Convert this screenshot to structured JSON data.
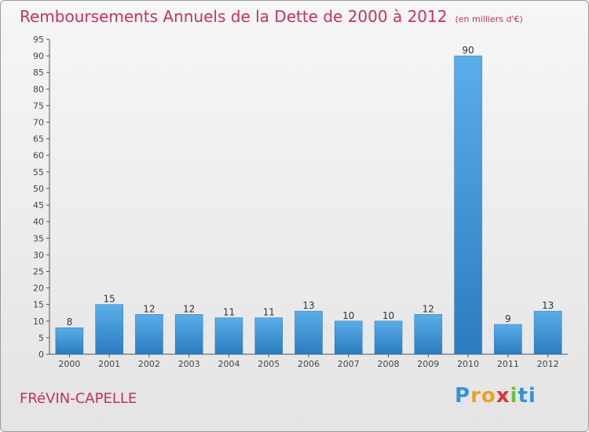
{
  "title": "Remboursements Annuels de la Dette de 2000 à 2012",
  "subtitle": "(en milliers d'€)",
  "place": "FRéVIN-CAPELLE",
  "logo": {
    "letters": [
      "P",
      "r",
      "o",
      "x",
      "i",
      "ti"
    ]
  },
  "colors": {
    "bar_top": "#5aaee8",
    "bar_bottom": "#2a7cc0",
    "title": "#c2335e"
  },
  "chart_data": {
    "type": "bar",
    "categories": [
      "2000",
      "2001",
      "2002",
      "2003",
      "2004",
      "2005",
      "2006",
      "2007",
      "2008",
      "2009",
      "2010",
      "2011",
      "2012"
    ],
    "values": [
      8,
      15,
      12,
      12,
      11,
      11,
      13,
      10,
      10,
      12,
      90,
      9,
      13
    ],
    "title": "Remboursements Annuels de la Dette de 2000 à 2012",
    "ylim": [
      0,
      95
    ],
    "yticks": [
      0,
      5,
      10,
      15,
      20,
      25,
      30,
      35,
      40,
      45,
      50,
      55,
      60,
      65,
      70,
      75,
      80,
      85,
      90,
      95
    ],
    "grid": false,
    "data_labels": true
  }
}
